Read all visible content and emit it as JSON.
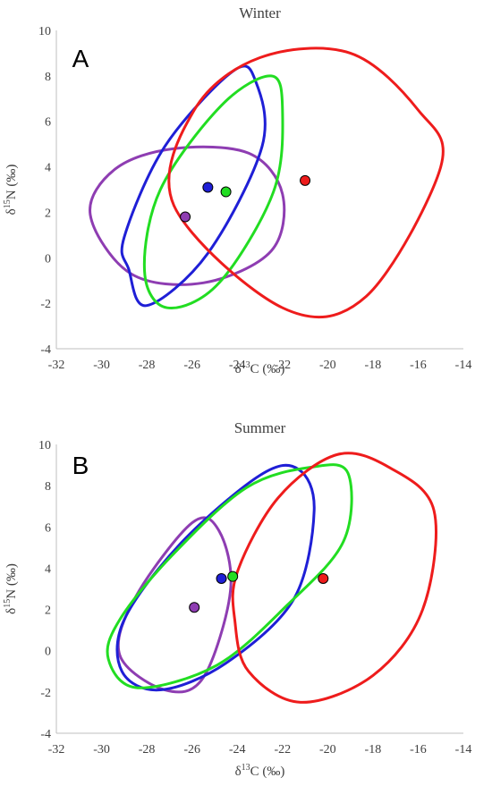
{
  "chart_data": [
    {
      "type": "scatter",
      "panel_label": "A",
      "title": "Winter",
      "xlabel": {
        "prefix": "δ",
        "sup": "13",
        "suffix": "C (‰)"
      },
      "ylabel": {
        "prefix": "δ",
        "sup": "15",
        "suffix": "N (‰)"
      },
      "xlim": [
        -32,
        -14
      ],
      "ylim": [
        -4,
        10
      ],
      "xticks": [
        -32,
        -30,
        -28,
        -26,
        -24,
        -22,
        -20,
        -18,
        -16,
        -14
      ],
      "yticks": [
        -4,
        -2,
        0,
        2,
        4,
        6,
        8,
        10
      ],
      "grid": false,
      "series": [
        {
          "color": "#8e3db2",
          "point": [
            -26.3,
            1.8
          ],
          "ellipse": [
            [
              -30.5,
              1.9
            ],
            [
              -29.4,
              3.9
            ],
            [
              -26.8,
              4.8
            ],
            [
              -23.5,
              4.6
            ],
            [
              -22.0,
              2.8
            ],
            [
              -22.5,
              0.3
            ],
            [
              -25.5,
              -1.1
            ],
            [
              -28.7,
              -0.7
            ]
          ]
        },
        {
          "color": "#1f1fd6",
          "point": [
            -25.3,
            3.1
          ],
          "ellipse": [
            [
              -28.8,
              -0.5
            ],
            [
              -29.0,
              0.9
            ],
            [
              -27.2,
              4.9
            ],
            [
              -24.2,
              8.2
            ],
            [
              -23.2,
              7.8
            ],
            [
              -22.9,
              4.9
            ],
            [
              -25.3,
              0.2
            ],
            [
              -28.0,
              -2.1
            ]
          ]
        },
        {
          "color": "#22dd22",
          "point": [
            -24.5,
            2.9
          ],
          "ellipse": [
            [
              -27.1,
              -2.2
            ],
            [
              -28.1,
              -0.6
            ],
            [
              -27.4,
              3.0
            ],
            [
              -24.7,
              6.7
            ],
            [
              -22.5,
              8.0
            ],
            [
              -22.0,
              6.5
            ],
            [
              -22.4,
              2.9
            ],
            [
              -24.8,
              -1.1
            ]
          ]
        },
        {
          "color": "#ee1c1c",
          "point": [
            -21.0,
            3.4
          ],
          "ellipse": [
            [
              -26.8,
              2.3
            ],
            [
              -25.9,
              6.5
            ],
            [
              -23.0,
              8.8
            ],
            [
              -19.0,
              9.0
            ],
            [
              -16.0,
              6.5
            ],
            [
              -15.0,
              4.0
            ],
            [
              -18.3,
              -1.7
            ],
            [
              -22.0,
              -2.2
            ]
          ]
        }
      ]
    },
    {
      "type": "scatter",
      "panel_label": "B",
      "title": "Summer",
      "xlabel": {
        "prefix": "δ",
        "sup": "13",
        "suffix": "C (‰)"
      },
      "ylabel": {
        "prefix": "δ",
        "sup": "15",
        "suffix": "N (‰)"
      },
      "xlim": [
        -32,
        -14
      ],
      "ylim": [
        -4,
        10
      ],
      "xticks": [
        -32,
        -30,
        -28,
        -26,
        -24,
        -22,
        -20,
        -18,
        -16,
        -14
      ],
      "yticks": [
        -4,
        -2,
        0,
        2,
        4,
        6,
        8,
        10
      ],
      "grid": false,
      "series": [
        {
          "color": "#8e3db2",
          "point": [
            -25.9,
            2.1
          ],
          "ellipse": [
            [
              -29.2,
              -0.2
            ],
            [
              -28.5,
              2.6
            ],
            [
              -26.0,
              6.2
            ],
            [
              -24.8,
              5.8
            ],
            [
              -24.3,
              2.9
            ],
            [
              -25.5,
              -1.3
            ],
            [
              -27.2,
              -1.9
            ]
          ]
        },
        {
          "color": "#1f1fd6",
          "point": [
            -24.7,
            3.5
          ],
          "ellipse": [
            [
              -29.1,
              -1.0
            ],
            [
              -29.0,
              1.5
            ],
            [
              -26.5,
              5.2
            ],
            [
              -23.0,
              8.5
            ],
            [
              -21.3,
              8.8
            ],
            [
              -20.6,
              6.8
            ],
            [
              -21.5,
              2.5
            ],
            [
              -24.5,
              -0.6
            ],
            [
              -27.4,
              -1.9
            ]
          ]
        },
        {
          "color": "#22dd22",
          "point": [
            -24.2,
            3.6
          ],
          "ellipse": [
            [
              -29.7,
              -0.4
            ],
            [
              -29.2,
              1.5
            ],
            [
              -26.9,
              4.6
            ],
            [
              -23.6,
              7.9
            ],
            [
              -20.7,
              8.9
            ],
            [
              -19.1,
              8.6
            ],
            [
              -19.3,
              5.3
            ],
            [
              -21.8,
              2.2
            ],
            [
              -24.9,
              -0.7
            ],
            [
              -28.4,
              -1.8
            ]
          ]
        },
        {
          "color": "#ee1c1c",
          "point": [
            -20.2,
            3.5
          ],
          "ellipse": [
            [
              -24.1,
              1.4
            ],
            [
              -24.0,
              3.8
            ],
            [
              -22.2,
              7.4
            ],
            [
              -19.6,
              9.5
            ],
            [
              -17.3,
              8.9
            ],
            [
              -15.3,
              6.8
            ],
            [
              -15.8,
              2.0
            ],
            [
              -18.0,
              -1.2
            ],
            [
              -21.2,
              -2.5
            ],
            [
              -23.5,
              -1.0
            ]
          ]
        }
      ]
    }
  ]
}
